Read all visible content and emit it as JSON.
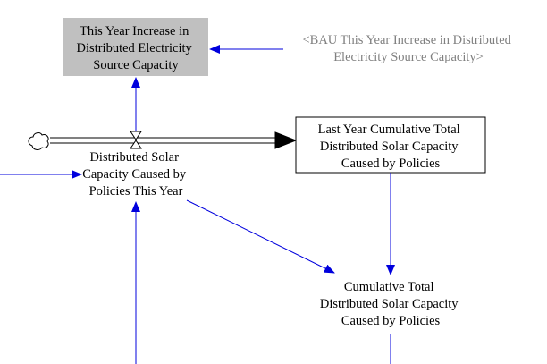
{
  "nodes": {
    "this_year_increase": {
      "lines": [
        "This Year Increase in",
        "Distributed Electricity",
        "Source Capacity"
      ]
    },
    "bau_increase": {
      "lines": [
        "<BAU This Year Increase in Distributed",
        "Electricity Source Capacity>"
      ]
    },
    "flow_distributed_solar": {
      "lines": [
        "Distributed Solar",
        "Capacity Caused by",
        "Policies This Year"
      ]
    },
    "last_year_cumulative": {
      "lines": [
        "Last Year Cumulative Total",
        "Distributed Solar Capacity",
        "Caused by Policies"
      ]
    },
    "cumulative_total": {
      "lines": [
        "Cumulative Total",
        "Distributed Solar Capacity",
        "Caused by Policies"
      ]
    }
  },
  "colors": {
    "arrow": "#0000dd",
    "shadow_variable_text": "#808080",
    "highlight_box": "#c0c0c0",
    "outline": "#000000"
  },
  "icons": {
    "source": "cloud-icon",
    "valve": "valve-icon"
  }
}
